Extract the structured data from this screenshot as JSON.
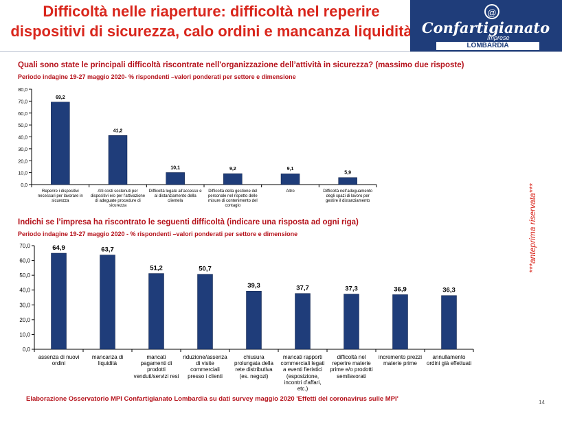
{
  "header": {
    "title_line1": "Difficoltà nelle riaperture: difficoltà nel reperire",
    "title_line2": "dispositivi di sicurezza, calo ordini e mancanza liquidità",
    "logo_name": "Confartigianato",
    "logo_sub": "Imprese",
    "logo_region": "LOMBARDIA",
    "logo_icon": "letter-a-circle-icon"
  },
  "chart_data": [
    {
      "type": "bar",
      "title": "Quali sono state le principali difficoltà riscontrate nell'organizzazione  dell’attività in sicurezza? (massimo due risposte)",
      "subtitle": "Periodo indagine 19-27 maggio 2020- % rispondenti –valori ponderati per settore e dimensione",
      "categories": [
        "Reperire i dispositivi necessari per lavorare in sicurezza",
        "Alti costi sostenuti per dispositivi e/o per l'attivazione di adeguate procedure di sicurezza",
        "Difficoltà legate all'accesso e al distanziamento della clientela",
        "Difficoltà della gestione del personale nel rispetto delle misure di contenimento del contagio",
        "Altro",
        "Difficoltà nell'adeguamento degli spazi di lavoro per gestire il distanziamento"
      ],
      "values": [
        69.2,
        41.2,
        10.1,
        9.2,
        9.1,
        5.9
      ],
      "value_labels": [
        "69,2",
        "41,2",
        "10,1",
        "9,2",
        "9,1",
        "5,9"
      ],
      "ylim": [
        0,
        80
      ],
      "yticks": [
        "0,0",
        "10,0",
        "20,0",
        "30,0",
        "40,0",
        "50,0",
        "60,0",
        "70,0",
        "80,0"
      ],
      "bar_color": "#1f3d7a",
      "grid": false
    },
    {
      "type": "bar",
      "title": "Indichi se l’impresa ha riscontrato le seguenti difficoltà (indicare una risposta ad ogni riga)",
      "subtitle": "Periodo indagine 19-27 maggio 2020 - % rispondenti –valori ponderati per settore e dimensione",
      "categories": [
        "assenza di nuovi ordini",
        "mancanza di liquidità",
        "mancati pagamenti di prodotti venduti/servizi resi",
        "riduzione/assenza di visite commerciali presso i clienti",
        "chiusura prolungata della rete distributiva (es. negozi)",
        "mancati rapporti commerciali legati a eventi fieristici (esposizione, incontri d'affari, etc.)",
        "difficoltà nel reperire materie prime e/o prodotti semilavorati",
        "incremento prezzi materie prime",
        "annullamento ordini già effettuati"
      ],
      "values": [
        64.9,
        63.7,
        51.2,
        50.7,
        39.3,
        37.7,
        37.3,
        36.9,
        36.3
      ],
      "value_labels": [
        "64,9",
        "63,7",
        "51,2",
        "50,7",
        "39,3",
        "37,7",
        "37,3",
        "36,9",
        "36,3"
      ],
      "ylim": [
        0,
        70
      ],
      "yticks": [
        "0,0",
        "10,0",
        "20,0",
        "30,0",
        "40,0",
        "50,0",
        "60,0",
        "70,0"
      ],
      "bar_color": "#1f3d7a",
      "grid": false
    }
  ],
  "side_note": "***anteprima riservata***",
  "footer": "Elaborazione Osservatorio MPI Confartigianato Lombardia su dati survey maggio 2020  'Effetti del coronavirus sulle MPI'",
  "page_number": "14"
}
